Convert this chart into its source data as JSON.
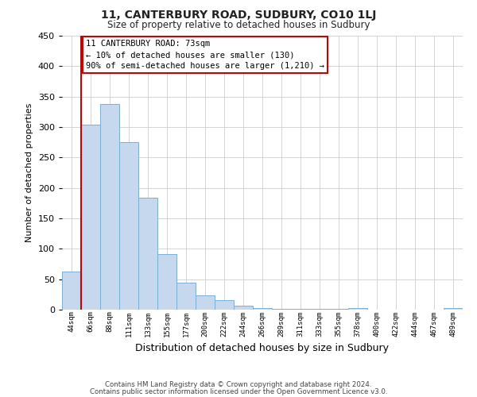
{
  "title": "11, CANTERBURY ROAD, SUDBURY, CO10 1LJ",
  "subtitle": "Size of property relative to detached houses in Sudbury",
  "xlabel": "Distribution of detached houses by size in Sudbury",
  "ylabel": "Number of detached properties",
  "bar_labels": [
    "44sqm",
    "66sqm",
    "88sqm",
    "111sqm",
    "133sqm",
    "155sqm",
    "177sqm",
    "200sqm",
    "222sqm",
    "244sqm",
    "266sqm",
    "289sqm",
    "311sqm",
    "333sqm",
    "355sqm",
    "378sqm",
    "400sqm",
    "422sqm",
    "444sqm",
    "467sqm",
    "489sqm"
  ],
  "bar_values": [
    62,
    304,
    338,
    275,
    184,
    91,
    45,
    24,
    16,
    7,
    3,
    1,
    1,
    1,
    1,
    2,
    0,
    0,
    0,
    0,
    2
  ],
  "bar_color": "#c5d8ed",
  "bar_edge_color": "#7bafd4",
  "vline_x": 0.5,
  "vline_color": "#cc0000",
  "ylim": [
    0,
    450
  ],
  "yticks": [
    0,
    50,
    100,
    150,
    200,
    250,
    300,
    350,
    400,
    450
  ],
  "annotation_title": "11 CANTERBURY ROAD: 73sqm",
  "annotation_line1": "← 10% of detached houses are smaller (130)",
  "annotation_line2": "90% of semi-detached houses are larger (1,210) →",
  "footer_line1": "Contains HM Land Registry data © Crown copyright and database right 2024.",
  "footer_line2": "Contains public sector information licensed under the Open Government Licence v3.0.",
  "bg_color": "#ffffff",
  "grid_color": "#cccccc"
}
